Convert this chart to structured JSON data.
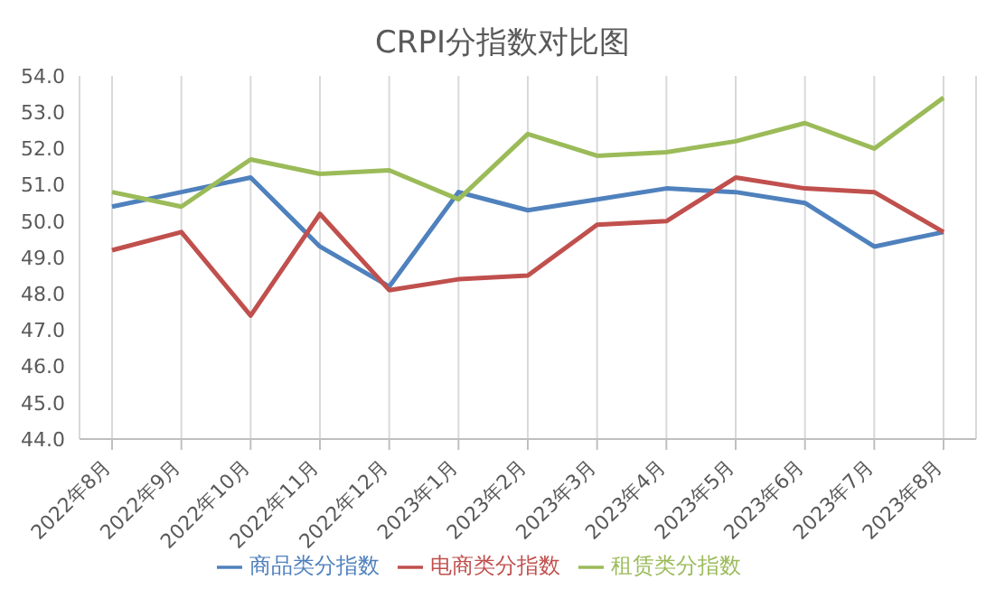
{
  "chart_data": {
    "type": "line",
    "title": "CRPI分指数对比图",
    "categories": [
      "2022年8月",
      "2022年9月",
      "2022年10月",
      "2022年11月",
      "2022年12月",
      "2023年1月",
      "2023年2月",
      "2023年3月",
      "2023年4月",
      "2023年5月",
      "2023年6月",
      "2023年7月",
      "2023年8月"
    ],
    "series": [
      {
        "name": "商品类分指数",
        "color": "#4f81bd",
        "values": [
          50.4,
          50.8,
          51.2,
          49.3,
          48.2,
          50.8,
          50.3,
          50.6,
          50.9,
          50.8,
          50.5,
          49.3,
          49.7
        ]
      },
      {
        "name": "电商类分指数",
        "color": "#c0504d",
        "values": [
          49.2,
          49.7,
          47.4,
          50.2,
          48.1,
          48.4,
          48.5,
          49.9,
          50.0,
          51.2,
          50.9,
          50.8,
          49.7
        ]
      },
      {
        "name": "租赁类分指数",
        "color": "#9bbb59",
        "values": [
          50.8,
          50.4,
          51.7,
          51.3,
          51.4,
          50.6,
          52.4,
          51.8,
          51.9,
          52.2,
          52.7,
          52.0,
          53.4
        ]
      }
    ],
    "ylim": [
      44,
      54
    ],
    "yticks": [
      {
        "value": 44,
        "label": "44.0"
      },
      {
        "value": 45,
        "label": "45.0"
      },
      {
        "value": 46,
        "label": "46.0"
      },
      {
        "value": 47,
        "label": "47.0"
      },
      {
        "value": 48,
        "label": "48.0"
      },
      {
        "value": 49,
        "label": "49.0"
      },
      {
        "value": 50,
        "label": "50.0"
      },
      {
        "value": 51,
        "label": "51.0"
      },
      {
        "value": 52,
        "label": "52.0"
      },
      {
        "value": 53,
        "label": "53.0"
      },
      {
        "value": 54,
        "label": "54.0"
      }
    ],
    "grid": "x",
    "legend": "bottom",
    "marker": "none",
    "line_style": "solid"
  }
}
